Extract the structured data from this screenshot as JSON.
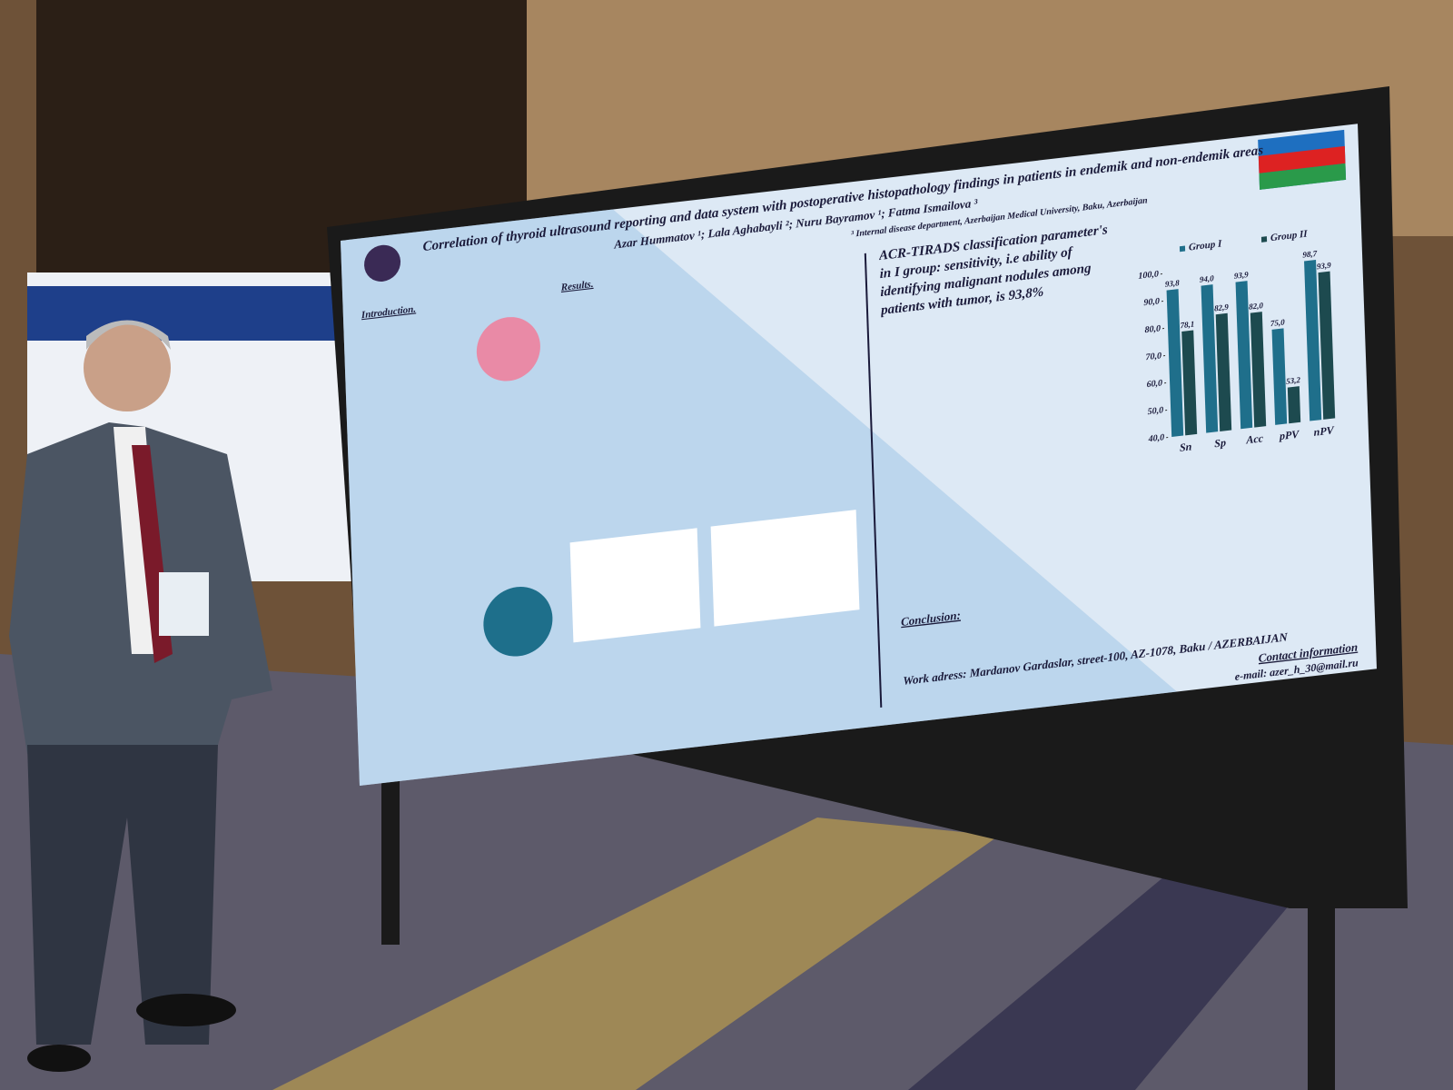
{
  "poster": {
    "title": "Correlation of thyroid ultrasound reporting and data system with postoperative histopathology findings in patients in endemik and non-endemik areas",
    "authors": "Azar Hummatov ¹; Lala Aghabayli ²; Nuru Bayramov ¹; Fatma Ismailova ³",
    "affiliation": "³ Internal disease department, Azerbaijan Medical University, Baku, Azerbaijan",
    "intro_heading": "Introduction.",
    "results_heading": "Results.",
    "conclusion_heading": "Conclusion:",
    "acr_text": "ACR-TIRADS classification parameter's in I group: sensitivity, i.e ability of identifying malignant nodules among patients with tumor, is 93,8%",
    "chart": {
      "type": "bar",
      "categories": [
        "Sn",
        "Sp",
        "Acc",
        "pPV",
        "nPV"
      ],
      "series": [
        {
          "name": "Group I",
          "color": "#1f6f8b",
          "values": [
            93.8,
            94.0,
            93.9,
            75.0,
            98.7
          ],
          "value_labels": [
            "93,8",
            "94,0",
            "93,9",
            "75,0",
            "98,7"
          ]
        },
        {
          "name": "Group II",
          "color": "#1d4a4f",
          "values": [
            78.1,
            82.9,
            82.0,
            53.2,
            93.9
          ],
          "value_labels": [
            "78,1",
            "82,9",
            "82,0",
            "53,2",
            "93,9"
          ]
        }
      ],
      "ylim": [
        40,
        100
      ],
      "yticks": [
        {
          "value": 40,
          "label": "40,0"
        },
        {
          "value": 50,
          "label": "50,0"
        },
        {
          "value": 60,
          "label": "60,0"
        },
        {
          "value": 70,
          "label": "70,0"
        },
        {
          "value": 80,
          "label": "80,0"
        },
        {
          "value": 90,
          "label": "90,0"
        },
        {
          "value": 100,
          "label": "100,0"
        }
      ]
    },
    "work_address": "Work adress: Mardanov Gardaslar, street-100, AZ-1078, Baku / AZERBAIJAN",
    "contact_heading": "Contact information",
    "email": "e-mail: azer_h_30@mail.ru"
  }
}
